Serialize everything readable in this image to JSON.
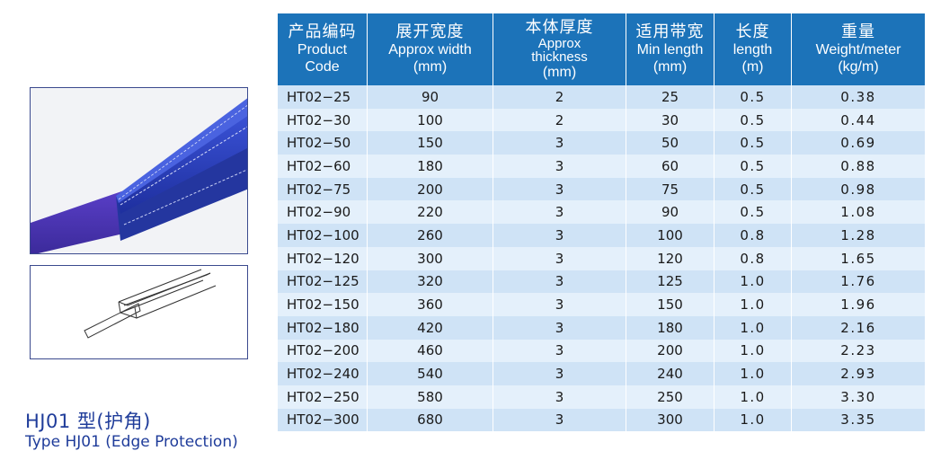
{
  "header": {
    "columns": [
      {
        "cn": "产品编码",
        "en": "Product",
        "unit": "Code"
      },
      {
        "cn": "展开宽度",
        "en": "Approx width",
        "unit": "(mm)"
      },
      {
        "cn": "本体厚度",
        "en": "Approx",
        "en2": "thickness",
        "unit": "(mm)"
      },
      {
        "cn": "适用带宽",
        "en": "Min length",
        "unit": "(mm)"
      },
      {
        "cn": "长度",
        "en": "length",
        "unit": "(m)"
      },
      {
        "cn": "重量",
        "en": "Weight/meter",
        "unit": "(kg/m)"
      }
    ]
  },
  "rows": [
    [
      "HT02−25",
      "90",
      "2",
      "25",
      "0.5",
      "0.38"
    ],
    [
      "HT02−30",
      "100",
      "2",
      "30",
      "0.5",
      "0.44"
    ],
    [
      "HT02−50",
      "150",
      "3",
      "50",
      "0.5",
      "0.69"
    ],
    [
      "HT02−60",
      "180",
      "3",
      "60",
      "0.5",
      "0.88"
    ],
    [
      "HT02−75",
      "200",
      "3",
      "75",
      "0.5",
      "0.98"
    ],
    [
      "HT02−90",
      "220",
      "3",
      "90",
      "0.5",
      "1.08"
    ],
    [
      "HT02−100",
      "260",
      "3",
      "100",
      "0.8",
      "1.28"
    ],
    [
      "HT02−120",
      "300",
      "3",
      "120",
      "0.8",
      "1.65"
    ],
    [
      "HT02−125",
      "320",
      "3",
      "125",
      "1.0",
      "1.76"
    ],
    [
      "HT02−150",
      "360",
      "3",
      "150",
      "1.0",
      "1.96"
    ],
    [
      "HT02−180",
      "420",
      "3",
      "180",
      "1.0",
      "2.16"
    ],
    [
      "HT02−200",
      "460",
      "3",
      "200",
      "1.0",
      "2.23"
    ],
    [
      "HT02−240",
      "540",
      "3",
      "240",
      "1.0",
      "2.93"
    ],
    [
      "HT02−250",
      "580",
      "3",
      "250",
      "1.0",
      "3.30"
    ],
    [
      "HT02−300",
      "680",
      "3",
      "300",
      "1.0",
      "3.35"
    ]
  ],
  "product": {
    "title": "HJ01 型(护角)",
    "subtitle": "Type HJ01 (Edge Protection)"
  },
  "colors": {
    "header_bg": "#1c73b9",
    "row_odd": "#cfe3f6",
    "row_even": "#e4f0fb",
    "title_blue": "#1f3c9a",
    "sleeve_blue": "#2a3fc0"
  },
  "icons": {
    "photo": "edge-protector-photo",
    "drawing": "edge-protector-line-drawing"
  }
}
